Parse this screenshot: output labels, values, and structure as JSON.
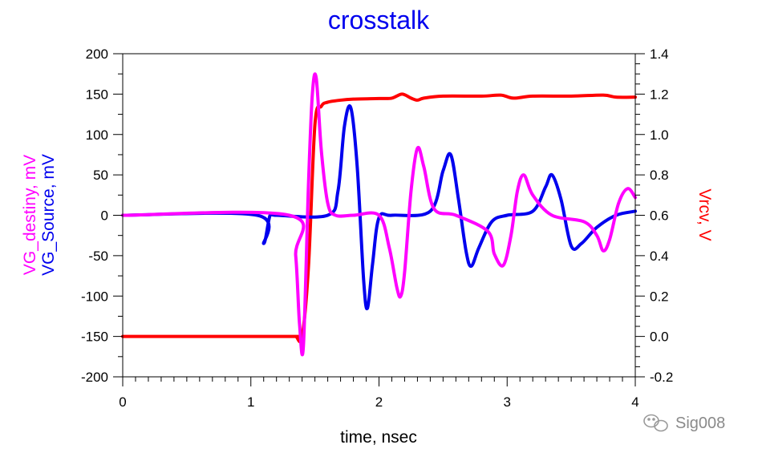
{
  "chart_data": {
    "type": "line",
    "title": "crosstalk",
    "xlabel": "time, nsec",
    "ylabel_left_1": "VG_destiny, mV",
    "ylabel_left_2": "VG_Source, mV",
    "ylabel_right": "Vrcv, V",
    "xlim": [
      0,
      4
    ],
    "ylim_left": [
      -200,
      200
    ],
    "ylim_right": [
      -0.2,
      1.4
    ],
    "xticks": [
      "0",
      "1",
      "2",
      "3",
      "4"
    ],
    "yticks_left": [
      "200",
      "150",
      "100",
      "50",
      "0",
      "-50",
      "-100",
      "-150",
      "-200"
    ],
    "yticks_right": [
      "1.4",
      "1.2",
      "1.0",
      "0.8",
      "0.6",
      "0.4",
      "0.2",
      "0.0",
      "-0.2"
    ],
    "grid": false,
    "series": [
      {
        "axis": "right",
        "color": "#ff0000",
        "x": [
          0,
          1.3,
          1.35,
          1.4,
          1.45,
          1.5,
          1.55,
          1.6,
          1.7,
          1.8,
          2.0,
          2.1,
          2.18,
          2.25,
          2.3,
          2.35,
          2.5,
          2.8,
          2.95,
          3.05,
          3.2,
          3.5,
          3.75,
          3.85,
          4.0
        ],
        "y": [
          0.0,
          0.0,
          0.0,
          0.0,
          0.35,
          1.05,
          1.14,
          1.16,
          1.17,
          1.175,
          1.178,
          1.18,
          1.2,
          1.18,
          1.17,
          1.18,
          1.19,
          1.19,
          1.195,
          1.18,
          1.19,
          1.19,
          1.195,
          1.185,
          1.185
        ]
      },
      {
        "axis": "left",
        "color": "#0000ee",
        "x": [
          0,
          1.05,
          1.1,
          1.15,
          1.2,
          1.6,
          1.68,
          1.73,
          1.78,
          1.83,
          1.88,
          1.91,
          1.95,
          2.0,
          2.1,
          2.4,
          2.5,
          2.56,
          2.62,
          2.68,
          2.72,
          2.78,
          2.88,
          3.0,
          3.2,
          3.3,
          3.35,
          3.42,
          3.5,
          3.58,
          3.7,
          3.85,
          4.0
        ],
        "y": [
          0,
          0,
          -35,
          0,
          0,
          0,
          30,
          110,
          133,
          60,
          -80,
          -115,
          -60,
          -3,
          0,
          5,
          55,
          75,
          20,
          -45,
          -63,
          -40,
          -8,
          0,
          5,
          35,
          50,
          20,
          -38,
          -35,
          -15,
          0,
          5
        ]
      },
      {
        "axis": "left",
        "color": "#ff00ff",
        "x": [
          0,
          1.3,
          1.35,
          1.38,
          1.41,
          1.45,
          1.48,
          1.51,
          1.55,
          1.6,
          1.66,
          1.8,
          2.0,
          2.08,
          2.14,
          2.17,
          2.2,
          2.25,
          2.3,
          2.35,
          2.43,
          2.6,
          2.85,
          2.9,
          2.97,
          3.03,
          3.08,
          3.13,
          3.2,
          3.35,
          3.6,
          3.7,
          3.75,
          3.8,
          3.87,
          3.94,
          4.0
        ],
        "y": [
          0,
          0,
          -50,
          -135,
          -162,
          40,
          150,
          170,
          80,
          15,
          0,
          0,
          0,
          -40,
          -90,
          -100,
          -70,
          30,
          83,
          60,
          8,
          0,
          -20,
          -48,
          -62,
          -25,
          30,
          50,
          25,
          0,
          -8,
          -25,
          -44,
          -30,
          15,
          33,
          22
        ]
      }
    ]
  },
  "watermark": {
    "text": "Sig008"
  }
}
